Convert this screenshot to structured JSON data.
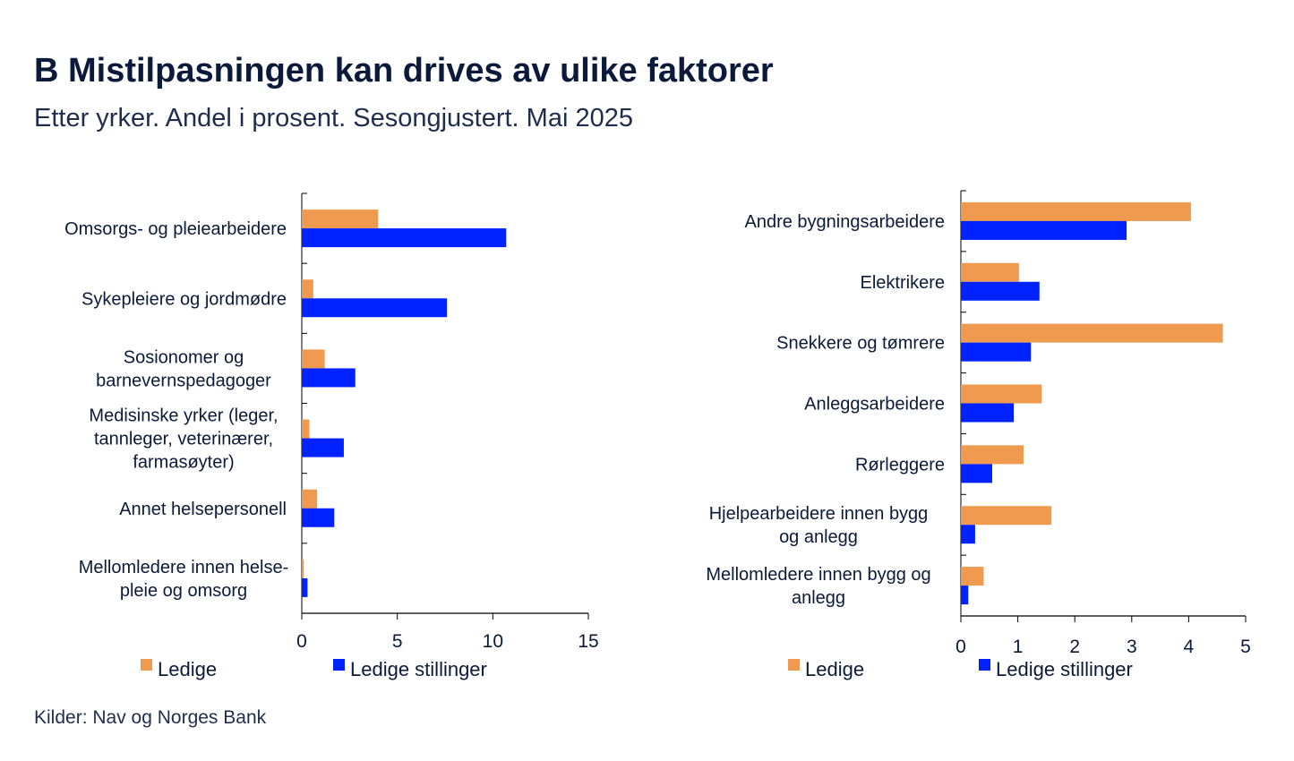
{
  "title": "B Mistilpasningen kan drives av ulike faktorer",
  "subtitle": "Etter yrker. Andel i prosent. Sesongjustert. Mai 2025",
  "source": "Kilder: Nav og Norges Bank",
  "colors": {
    "ledige": "#EF9A4E",
    "stillinger": "#0022FF"
  },
  "chart_data": [
    {
      "type": "bar",
      "orientation": "horizontal",
      "xlim": [
        0,
        15
      ],
      "xticks": [
        "0",
        "5",
        "10",
        "15"
      ],
      "categories": [
        [
          "Omsorgs- og pleiearbeidere"
        ],
        [
          "Sykepleiere og jordmødre"
        ],
        [
          "Sosionomer og",
          "barnevernspedagoger"
        ],
        [
          "Medisinske yrker (leger,",
          "tannleger, veterinærer,",
          "farmasøyter)"
        ],
        [
          "Annet helsepersonell"
        ],
        [
          "Mellomledere innen helse-",
          "pleie og omsorg"
        ]
      ],
      "series": [
        {
          "name": "Ledige",
          "values": [
            4.0,
            0.6,
            1.2,
            0.4,
            0.8,
            0.1
          ]
        },
        {
          "name": "Ledige stillinger",
          "values": [
            10.7,
            7.6,
            2.8,
            2.2,
            1.7,
            0.3
          ]
        }
      ],
      "legend": "bottom"
    },
    {
      "type": "bar",
      "orientation": "horizontal",
      "xlim": [
        0,
        5
      ],
      "xticks": [
        "0",
        "1",
        "2",
        "3",
        "4",
        "5"
      ],
      "categories": [
        [
          "Andre bygningsarbeidere"
        ],
        [
          "Elektrikere"
        ],
        [
          "Snekkere og tømrere"
        ],
        [
          "Anleggsarbeidere"
        ],
        [
          "Rørleggere"
        ],
        [
          "Hjelpearbeidere innen bygg",
          "og anlegg"
        ],
        [
          "Mellomledere innen bygg og",
          "anlegg"
        ]
      ],
      "series": [
        {
          "name": "Ledige",
          "values": [
            4.04,
            1.02,
            4.6,
            1.42,
            1.1,
            1.59,
            0.4
          ]
        },
        {
          "name": "Ledige stillinger",
          "values": [
            2.91,
            1.38,
            1.23,
            0.93,
            0.55,
            0.25,
            0.13
          ]
        }
      ],
      "legend": "bottom"
    }
  ]
}
